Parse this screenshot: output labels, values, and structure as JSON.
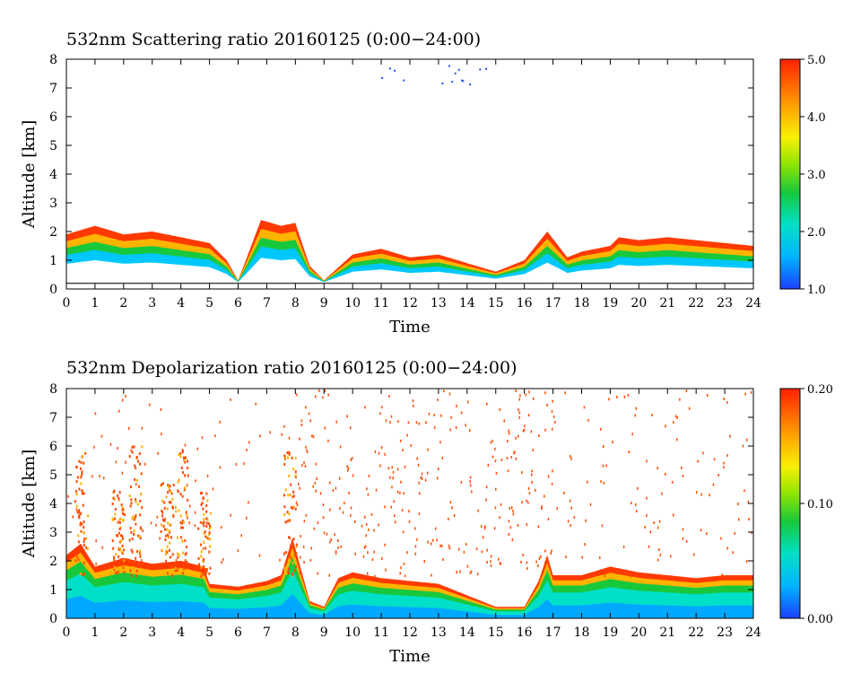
{
  "chart_data": [
    {
      "type": "heatmap",
      "title": "532nm Scattering ratio  20160125 (0:00−24:00)",
      "xlabel": "Time",
      "ylabel": "Altitude [km]",
      "xlim": [
        0,
        24
      ],
      "ylim": [
        0,
        8
      ],
      "x_ticks": [
        "0",
        "1",
        "2",
        "3",
        "4",
        "5",
        "6",
        "7",
        "8",
        "9",
        "10",
        "11",
        "12",
        "13",
        "14",
        "15",
        "16",
        "17",
        "18",
        "19",
        "20",
        "21",
        "22",
        "23",
        "24"
      ],
      "y_ticks": [
        "0",
        "1",
        "2",
        "3",
        "4",
        "5",
        "6",
        "7",
        "8"
      ],
      "colorbar": {
        "range": [
          1.0,
          5.0
        ],
        "ticks": [
          "1.0",
          "2.0",
          "3.0",
          "4.0",
          "5.0"
        ]
      },
      "layers": [
        {
          "name": "cloud",
          "base_km": 0.2,
          "top_km": [
            [
              0,
              1.9
            ],
            [
              1,
              2.2
            ],
            [
              2,
              1.9
            ],
            [
              3,
              2.0
            ],
            [
              4,
              1.8
            ],
            [
              5,
              1.6
            ],
            [
              5.6,
              1.0
            ],
            [
              6,
              0.3
            ],
            [
              6.8,
              2.4
            ],
            [
              7.5,
              2.2
            ],
            [
              8,
              2.3
            ],
            [
              8.5,
              0.8
            ],
            [
              9,
              0.3
            ],
            [
              10,
              1.2
            ],
            [
              11,
              1.4
            ],
            [
              12,
              1.1
            ],
            [
              13,
              1.2
            ],
            [
              14,
              0.9
            ],
            [
              15,
              0.6
            ],
            [
              16,
              1.0
            ],
            [
              16.8,
              2.0
            ],
            [
              17.5,
              1.1
            ],
            [
              18,
              1.3
            ],
            [
              19,
              1.5
            ],
            [
              19.3,
              1.8
            ],
            [
              20,
              1.7
            ],
            [
              21,
              1.8
            ],
            [
              22,
              1.7
            ],
            [
              23,
              1.6
            ],
            [
              24,
              1.5
            ]
          ]
        }
      ]
    },
    {
      "type": "heatmap",
      "title": "532nm Depolarization ratio  20160125 (0:00−24:00)",
      "xlabel": "Time",
      "ylabel": "Altitude [km]",
      "xlim": [
        0,
        24
      ],
      "ylim": [
        0,
        8
      ],
      "x_ticks": [
        "0",
        "1",
        "2",
        "3",
        "4",
        "5",
        "6",
        "7",
        "8",
        "9",
        "10",
        "11",
        "12",
        "13",
        "14",
        "15",
        "16",
        "17",
        "18",
        "19",
        "20",
        "21",
        "22",
        "23",
        "24"
      ],
      "y_ticks": [
        "0",
        "1",
        "2",
        "3",
        "4",
        "5",
        "6",
        "7",
        "8"
      ],
      "colorbar": {
        "range": [
          0.0,
          0.2
        ],
        "ticks": [
          "0.00",
          "0.10",
          "0.20"
        ]
      },
      "layers": [
        {
          "name": "low-depol",
          "base_km": 0.0,
          "top_km": [
            [
              0,
              2.2
            ],
            [
              0.5,
              2.6
            ],
            [
              1,
              1.8
            ],
            [
              2,
              2.1
            ],
            [
              3,
              1.9
            ],
            [
              4,
              2.0
            ],
            [
              4.8,
              1.8
            ],
            [
              5,
              1.2
            ],
            [
              6,
              1.1
            ],
            [
              7,
              1.3
            ],
            [
              7.5,
              1.5
            ],
            [
              7.9,
              2.8
            ],
            [
              8.5,
              0.6
            ],
            [
              9,
              0.4
            ],
            [
              9.5,
              1.4
            ],
            [
              10,
              1.6
            ],
            [
              11,
              1.4
            ],
            [
              12,
              1.3
            ],
            [
              13,
              1.2
            ],
            [
              14,
              0.8
            ],
            [
              15,
              0.4
            ],
            [
              16,
              0.4
            ],
            [
              16.5,
              1.3
            ],
            [
              16.8,
              2.2
            ],
            [
              17,
              1.5
            ],
            [
              18,
              1.5
            ],
            [
              19,
              1.8
            ],
            [
              20,
              1.6
            ],
            [
              21,
              1.5
            ],
            [
              22,
              1.4
            ],
            [
              23,
              1.5
            ],
            [
              24,
              1.5
            ]
          ]
        }
      ],
      "plumes": [
        [
          0.5,
          5.8
        ],
        [
          1.8,
          4.5
        ],
        [
          2.4,
          6.2
        ],
        [
          3.5,
          4.8
        ],
        [
          4.0,
          6.0
        ],
        [
          4.8,
          4.5
        ],
        [
          7.8,
          6.0
        ]
      ]
    }
  ]
}
